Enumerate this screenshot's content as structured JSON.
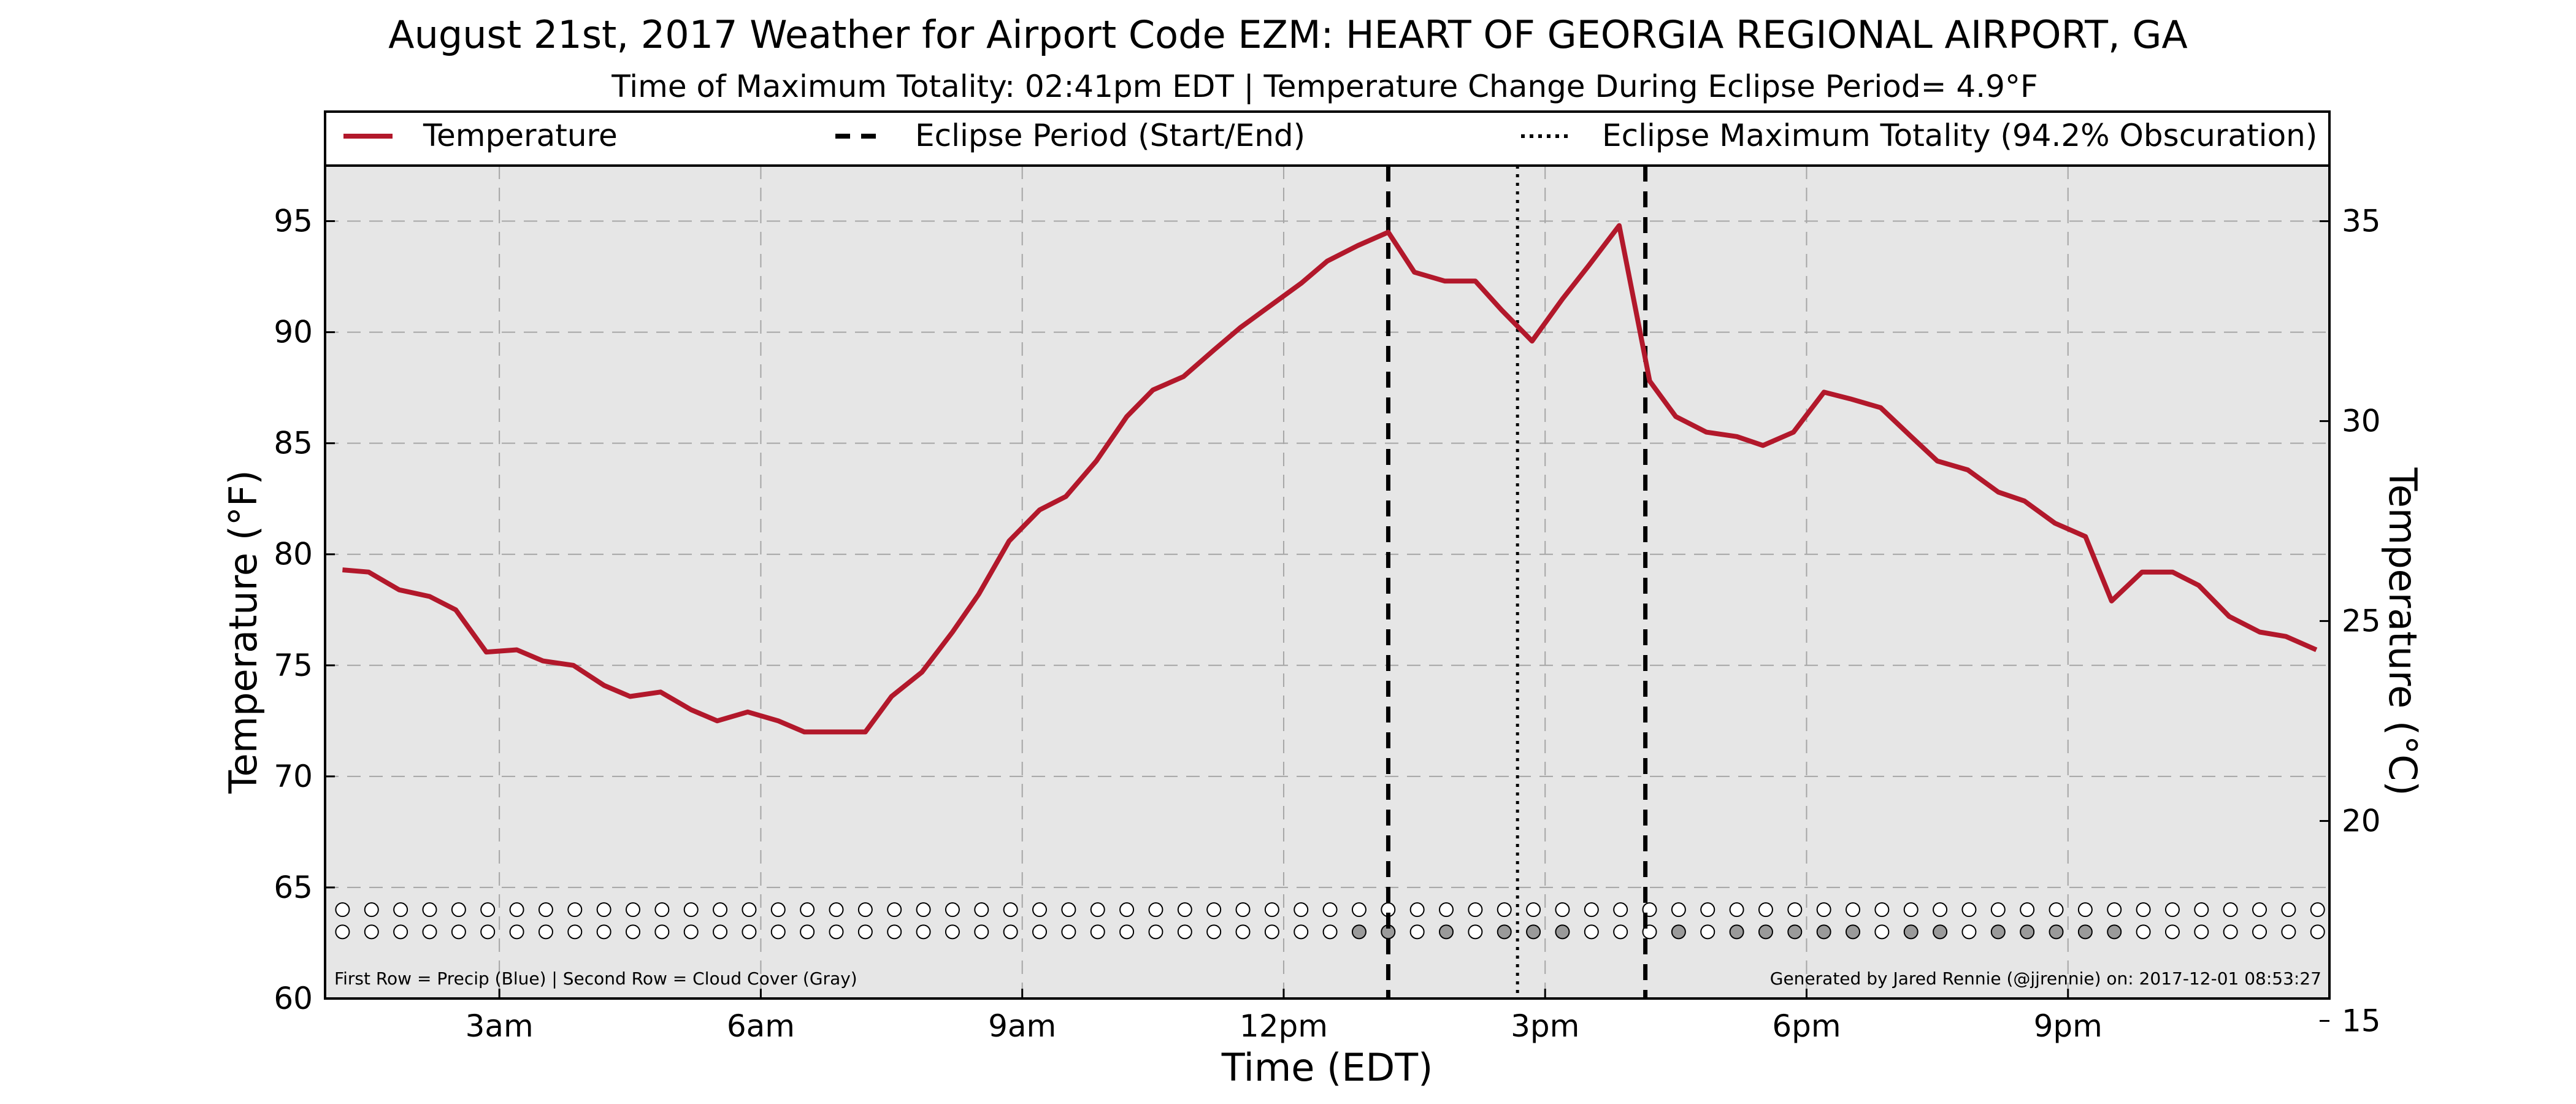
{
  "chart_data": {
    "type": "line",
    "title": "August 21st, 2017 Weather for Airport Code EZM: HEART OF GEORGIA REGIONAL AIRPORT, GA",
    "subtitle": "Time of Maximum Totality: 02:41pm EDT | Temperature Change During Eclipse Period= 4.9°F",
    "xlabel": "Time (EDT)",
    "ylabel": "Temperature (°F)",
    "ylabel_right": "Temperature (°C)",
    "xlim": [
      1.0,
      24.0
    ],
    "ylim": [
      60,
      97.5
    ],
    "ylim_right": [
      15.56,
      36.39
    ],
    "x_ticks": [
      {
        "x": 3,
        "label": "3am"
      },
      {
        "x": 6,
        "label": "6am"
      },
      {
        "x": 9,
        "label": "9am"
      },
      {
        "x": 12,
        "label": "12pm"
      },
      {
        "x": 15,
        "label": "3pm"
      },
      {
        "x": 18,
        "label": "6pm"
      },
      {
        "x": 21,
        "label": "9pm"
      }
    ],
    "y_ticks": [
      {
        "y": 60,
        "label": "60"
      },
      {
        "y": 65,
        "label": "65"
      },
      {
        "y": 70,
        "label": "70"
      },
      {
        "y": 75,
        "label": "75"
      },
      {
        "y": 80,
        "label": "80"
      },
      {
        "y": 85,
        "label": "85"
      },
      {
        "y": 90,
        "label": "90"
      },
      {
        "y": 95,
        "label": "95"
      }
    ],
    "y_ticks_right": [
      {
        "y": 15,
        "label": "15"
      },
      {
        "y": 20,
        "label": "20"
      },
      {
        "y": 25,
        "label": "25"
      },
      {
        "y": 30,
        "label": "30"
      },
      {
        "y": 35,
        "label": "35"
      }
    ],
    "grid": true,
    "legend_position": "top",
    "legend": [
      {
        "label": "Temperature",
        "style": "solid"
      },
      {
        "label": "Eclipse Period (Start/End)",
        "style": "dashed"
      },
      {
        "label": "Eclipse Maximum Totality (94.2% Obscuration)",
        "style": "dotted"
      }
    ],
    "series": [
      {
        "name": "Temperature",
        "color": "#b2182b",
        "points": [
          [
            1.2,
            79.3
          ],
          [
            1.5,
            79.2
          ],
          [
            1.85,
            78.4
          ],
          [
            2.2,
            78.1
          ],
          [
            2.5,
            77.5
          ],
          [
            2.85,
            75.6
          ],
          [
            3.2,
            75.7
          ],
          [
            3.5,
            75.2
          ],
          [
            3.85,
            75.0
          ],
          [
            4.2,
            74.1
          ],
          [
            4.5,
            73.6
          ],
          [
            4.85,
            73.8
          ],
          [
            5.2,
            73.0
          ],
          [
            5.5,
            72.5
          ],
          [
            5.85,
            72.9
          ],
          [
            6.2,
            72.5
          ],
          [
            6.5,
            72.0
          ],
          [
            6.85,
            72.0
          ],
          [
            7.2,
            72.0
          ],
          [
            7.5,
            73.6
          ],
          [
            7.85,
            74.7
          ],
          [
            8.2,
            76.5
          ],
          [
            8.5,
            78.2
          ],
          [
            8.85,
            80.6
          ],
          [
            9.2,
            82.0
          ],
          [
            9.5,
            82.6
          ],
          [
            9.85,
            84.2
          ],
          [
            10.2,
            86.2
          ],
          [
            10.5,
            87.4
          ],
          [
            10.85,
            88.0
          ],
          [
            11.2,
            89.2
          ],
          [
            11.5,
            90.2
          ],
          [
            11.85,
            91.2
          ],
          [
            12.2,
            92.2
          ],
          [
            12.5,
            93.2
          ],
          [
            12.85,
            93.9
          ],
          [
            13.2,
            94.5
          ],
          [
            13.5,
            92.7
          ],
          [
            13.85,
            92.3
          ],
          [
            14.2,
            92.3
          ],
          [
            14.5,
            91.0
          ],
          [
            14.85,
            89.6
          ],
          [
            15.2,
            91.5
          ],
          [
            15.5,
            93.0
          ],
          [
            15.85,
            94.8
          ],
          [
            16.2,
            87.8
          ],
          [
            16.5,
            86.2
          ],
          [
            16.85,
            85.5
          ],
          [
            17.2,
            85.3
          ],
          [
            17.5,
            84.9
          ],
          [
            17.85,
            85.5
          ],
          [
            18.2,
            87.3
          ],
          [
            18.5,
            87.0
          ],
          [
            18.85,
            86.6
          ],
          [
            19.2,
            85.3
          ],
          [
            19.5,
            84.2
          ],
          [
            19.85,
            83.8
          ],
          [
            20.2,
            82.8
          ],
          [
            20.5,
            82.4
          ],
          [
            20.85,
            81.4
          ],
          [
            21.2,
            80.8
          ],
          [
            21.5,
            77.9
          ],
          [
            21.85,
            79.2
          ],
          [
            22.2,
            79.2
          ],
          [
            22.5,
            78.6
          ],
          [
            22.85,
            77.2
          ],
          [
            23.2,
            76.5
          ],
          [
            23.5,
            76.3
          ],
          [
            23.85,
            75.7
          ]
        ]
      }
    ],
    "eclipse_start": 13.2,
    "eclipse_end": 16.15,
    "eclipse_max": 14.683,
    "obs_rows": {
      "precip_y": 64.0,
      "cloud_y": 63.0,
      "x_start": 1.2,
      "x_step": 0.3333,
      "count": 69,
      "cloud_gray_indices": [
        35,
        36,
        38,
        40,
        41,
        42,
        46,
        48,
        49,
        50,
        51,
        52,
        54,
        55,
        57,
        58,
        59,
        60,
        61
      ]
    },
    "footnote_left": "First Row = Precip (Blue) | Second Row = Cloud Cover (Gray)",
    "footnote_right": "Generated by Jared Rennie (@jjrennie) on: 2017-12-01 08:53:27"
  }
}
